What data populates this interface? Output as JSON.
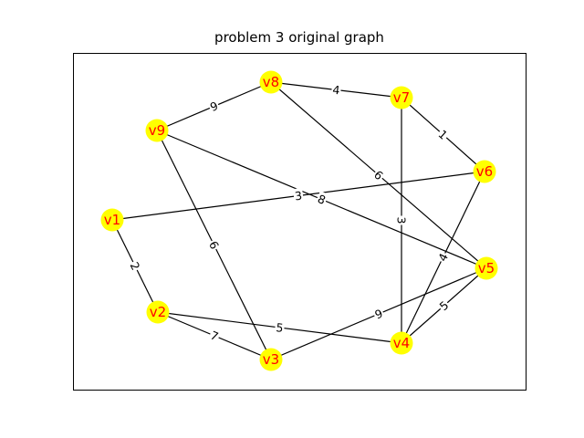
{
  "title": "problem 3 original graph",
  "colors": {
    "node_fill": "#ffff00",
    "node_label": "#ff0000",
    "edge": "#000000"
  },
  "graph": {
    "nodes": [
      {
        "id": "v1"
      },
      {
        "id": "v2"
      },
      {
        "id": "v3"
      },
      {
        "id": "v4"
      },
      {
        "id": "v5"
      },
      {
        "id": "v6"
      },
      {
        "id": "v7"
      },
      {
        "id": "v8"
      },
      {
        "id": "v9"
      }
    ],
    "edges": [
      {
        "from": "v1",
        "to": "v2",
        "weight": "2"
      },
      {
        "from": "v1",
        "to": "v6",
        "weight": "3"
      },
      {
        "from": "v2",
        "to": "v3",
        "weight": "7"
      },
      {
        "from": "v2",
        "to": "v4",
        "weight": "5"
      },
      {
        "from": "v9",
        "to": "v3",
        "weight": "6"
      },
      {
        "from": "v3",
        "to": "v5",
        "weight": "9"
      },
      {
        "from": "v9",
        "to": "v8",
        "weight": "9"
      },
      {
        "from": "v9",
        "to": "v5",
        "weight": "8"
      },
      {
        "from": "v8",
        "to": "v7",
        "weight": "4"
      },
      {
        "from": "v8",
        "to": "v5",
        "weight": "6"
      },
      {
        "from": "v7",
        "to": "v6",
        "weight": "1"
      },
      {
        "from": "v7",
        "to": "v4",
        "weight": "3"
      },
      {
        "from": "v6",
        "to": "v4",
        "weight": "4"
      },
      {
        "from": "v4",
        "to": "v5",
        "weight": "5"
      }
    ]
  }
}
